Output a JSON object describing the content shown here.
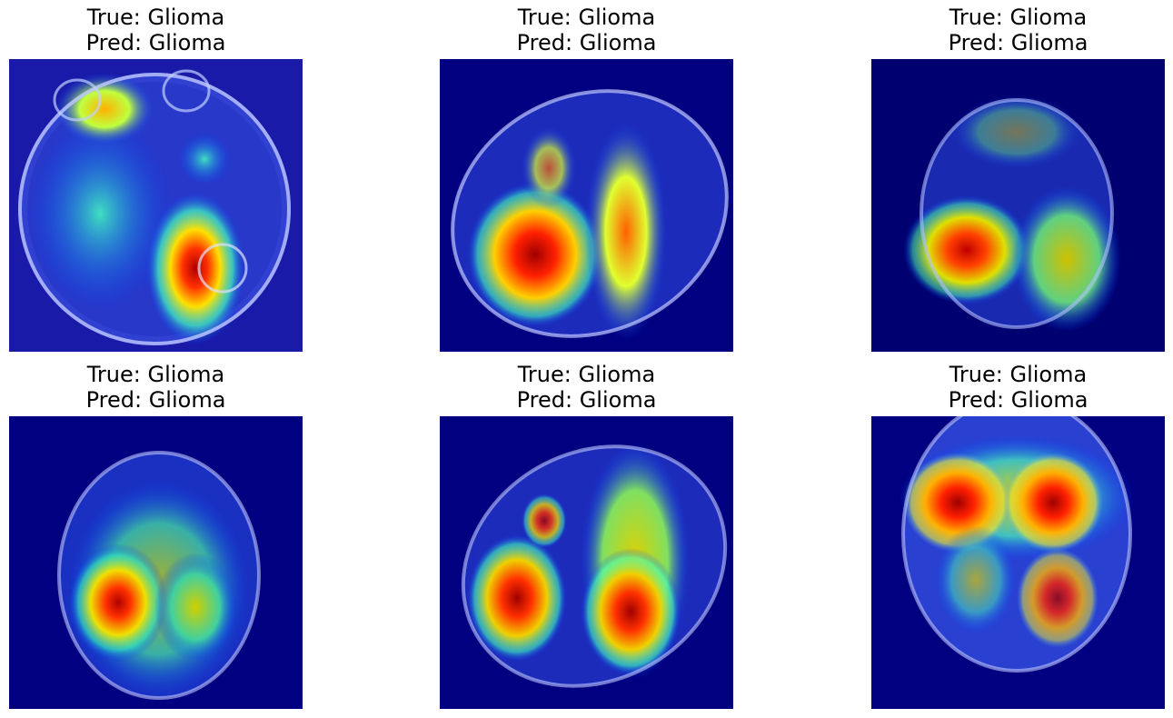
{
  "panels": [
    {
      "true_label": "True: Glioma",
      "pred_label": "Pred: Glioma"
    },
    {
      "true_label": "True: Glioma",
      "pred_label": "Pred: Glioma"
    },
    {
      "true_label": "True: Glioma",
      "pred_label": "Pred: Glioma"
    },
    {
      "true_label": "True: Glioma",
      "pred_label": "Pred: Glioma"
    },
    {
      "true_label": "True: Glioma",
      "pred_label": "Pred: Glioma"
    },
    {
      "true_label": "True: Glioma",
      "pred_label": "Pred: Glioma"
    }
  ],
  "colormap": [
    "#00007f",
    "#0000ff",
    "#00ffff",
    "#ffff00",
    "#ff0000",
    "#7f0000"
  ]
}
